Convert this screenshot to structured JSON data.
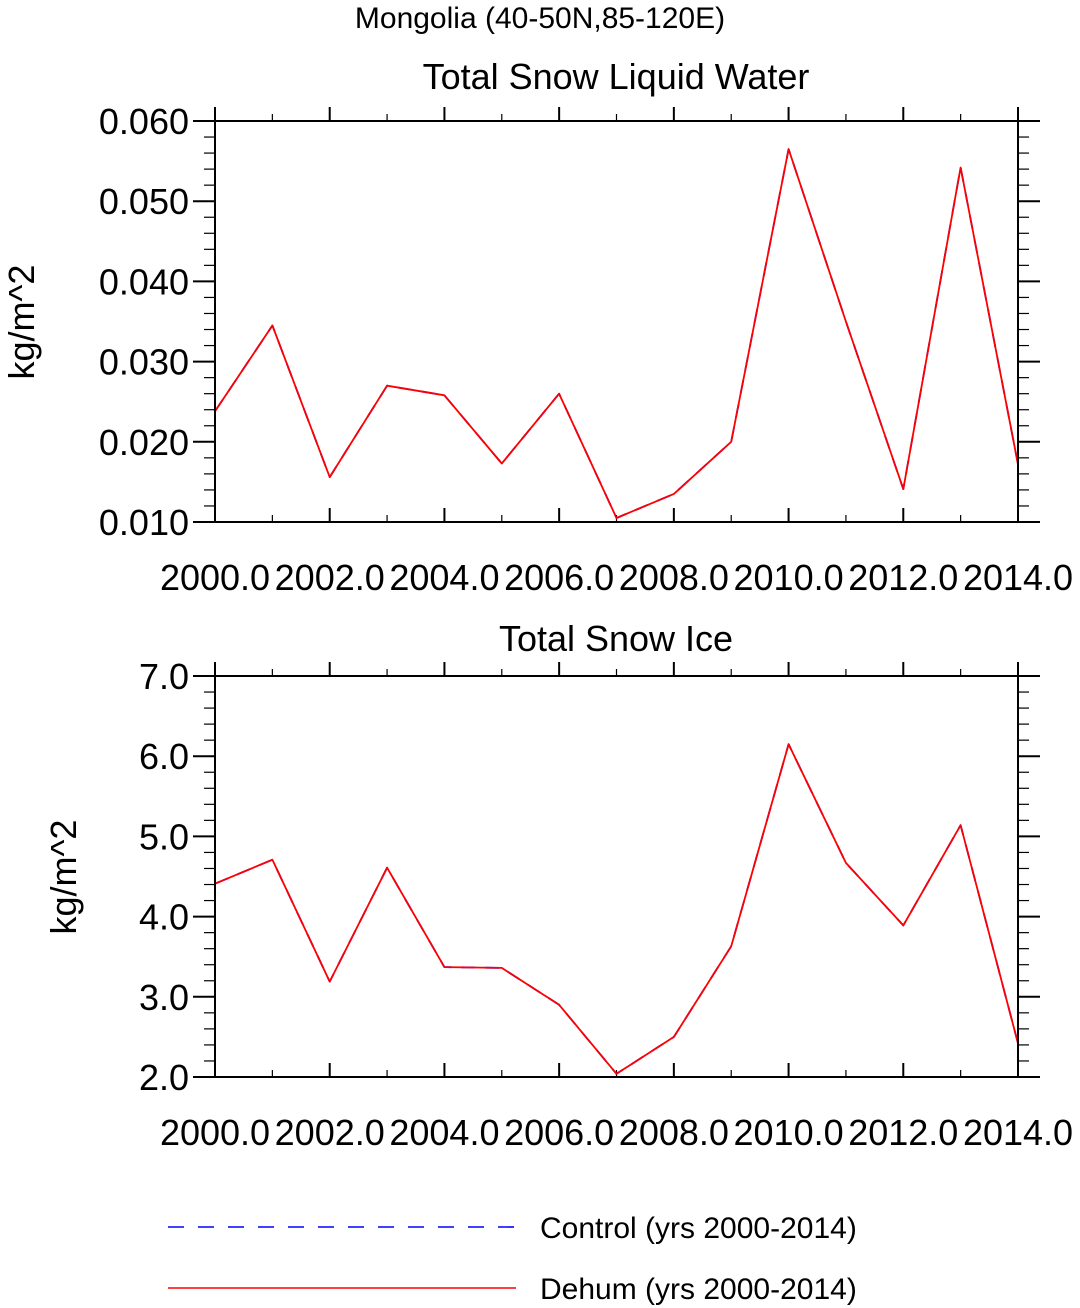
{
  "figure": {
    "suptitle": "Mongolia (40-50N,85-120E)"
  },
  "chart_data": [
    {
      "type": "line",
      "title": "Total Snow Liquid Water",
      "xlabel": "",
      "ylabel": "kg/m^2",
      "xlim": [
        2000,
        2014
      ],
      "ylim": [
        0.01,
        0.06
      ],
      "x_ticks": [
        "2000.0",
        "2002.0",
        "2004.0",
        "2006.0",
        "2008.0",
        "2010.0",
        "2012.0",
        "2014.0"
      ],
      "y_ticks": [
        "0.010",
        "0.020",
        "0.030",
        "0.040",
        "0.050",
        "0.060"
      ],
      "x": [
        2000,
        2001,
        2002,
        2003,
        2004,
        2005,
        2006,
        2007,
        2008,
        2009,
        2010,
        2011,
        2012,
        2013,
        2014
      ],
      "series": [
        {
          "name": "Control (yrs 2000-2014)",
          "color": "#0000ff",
          "style": "dashed",
          "values": [
            0.0238,
            0.0345,
            0.0156,
            0.027,
            0.0258,
            0.0173,
            0.026,
            0.0105,
            0.0135,
            0.02,
            0.0565,
            0.035,
            0.0141,
            0.0542,
            0.0172
          ]
        },
        {
          "name": "Dehum (yrs 2000-2014)",
          "color": "#ff0000",
          "style": "solid",
          "values": [
            0.0238,
            0.0345,
            0.0156,
            0.027,
            0.0258,
            0.0173,
            0.026,
            0.0105,
            0.0135,
            0.02,
            0.0565,
            0.035,
            0.0141,
            0.0542,
            0.0172
          ]
        }
      ]
    },
    {
      "type": "line",
      "title": "Total Snow Ice",
      "xlabel": "",
      "ylabel": "kg/m^2",
      "xlim": [
        2000,
        2014
      ],
      "ylim": [
        2.0,
        7.0
      ],
      "x_ticks": [
        "2000.0",
        "2002.0",
        "2004.0",
        "2006.0",
        "2008.0",
        "2010.0",
        "2012.0",
        "2014.0"
      ],
      "y_ticks": [
        "2.0",
        "3.0",
        "4.0",
        "5.0",
        "6.0",
        "7.0"
      ],
      "x": [
        2000,
        2001,
        2002,
        2003,
        2004,
        2005,
        2006,
        2007,
        2008,
        2009,
        2010,
        2011,
        2012,
        2013,
        2014
      ],
      "series": [
        {
          "name": "Control (yrs 2000-2014)",
          "color": "#0000ff",
          "style": "dashed",
          "values": [
            4.41,
            4.71,
            3.19,
            4.61,
            3.37,
            3.36,
            2.9,
            2.04,
            2.5,
            3.63,
            6.15,
            4.67,
            3.89,
            5.14,
            2.42
          ]
        },
        {
          "name": "Dehum (yrs 2000-2014)",
          "color": "#ff0000",
          "style": "solid",
          "values": [
            4.41,
            4.71,
            3.19,
            4.61,
            3.37,
            3.36,
            2.9,
            2.04,
            2.5,
            3.63,
            6.15,
            4.67,
            3.89,
            5.14,
            2.42
          ]
        }
      ]
    }
  ],
  "legend": {
    "placement": "bottom",
    "items": [
      {
        "label": "Control (yrs 2000-2014)",
        "color": "#0000ff",
        "style": "dashed"
      },
      {
        "label": "Dehum (yrs 2000-2014)",
        "color": "#ff0000",
        "style": "solid"
      }
    ]
  }
}
